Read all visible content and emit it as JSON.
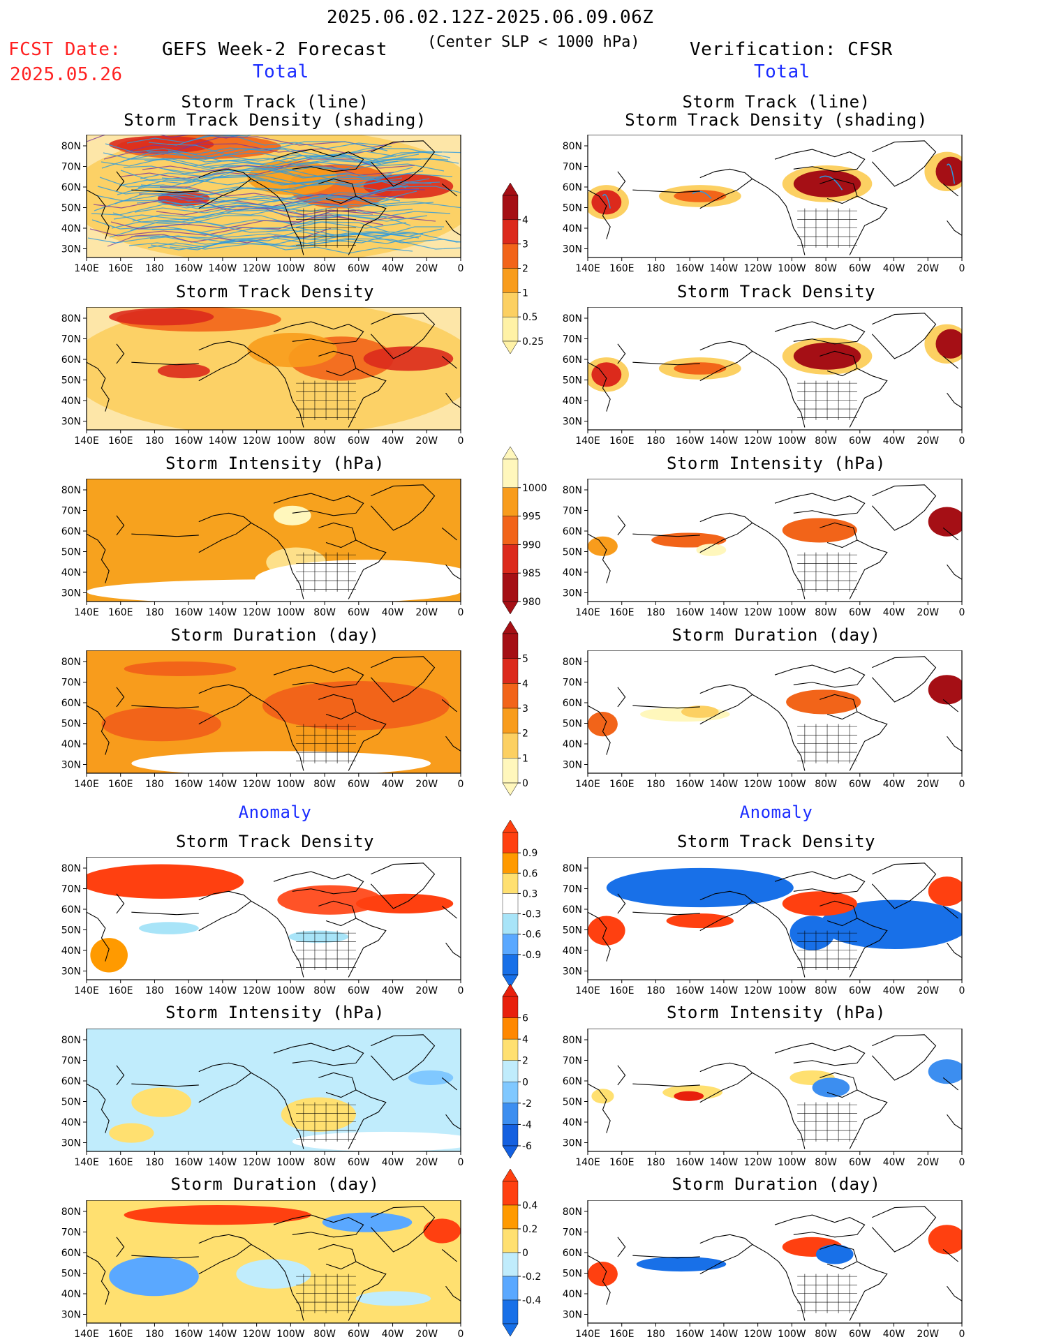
{
  "header": {
    "period": "2025.06.02.12Z-2025.06.09.06Z",
    "criteria": "(Center SLP < 1000 hPa)",
    "fcst_date_label": "FCST Date:",
    "fcst_date_value": "2025.05.26",
    "left_title": "GEFS Week-2 Forecast",
    "right_title": "Verification: CFSR",
    "left_sub": "Total",
    "right_sub": "Total"
  },
  "sections": {
    "anomaly_left": "Anomaly",
    "anomaly_right": "Anomaly"
  },
  "panel_titles": {
    "track_line": "Storm Track (line)",
    "track_shading": "Storm Track Density (shading)",
    "density": "Storm Track Density",
    "intensity": "Storm Intensity (hPa)",
    "duration": "Storm Duration (day)"
  },
  "axes": {
    "lon_labels": [
      "140E",
      "160E",
      "180",
      "160W",
      "140W",
      "120W",
      "100W",
      "80W",
      "60W",
      "40W",
      "20W",
      "0"
    ],
    "lat_labels": [
      "80N",
      "70N",
      "60N",
      "50N",
      "40N",
      "30N"
    ]
  },
  "colorbars": {
    "density_total": {
      "labels": [
        "4",
        "3",
        "2",
        "1",
        "0.5",
        "0.25"
      ],
      "colors": [
        "#a50f15",
        "#dc2a1c",
        "#f26419",
        "#f89c1c",
        "#fcd062",
        "#fff2a6"
      ]
    },
    "intensity_total": {
      "labels": [
        "1000",
        "995",
        "990",
        "985",
        "980"
      ],
      "colors": [
        "#fff7bc",
        "#f89c1c",
        "#f26419",
        "#dc2a1c",
        "#a50f15"
      ]
    },
    "duration_total": {
      "labels": [
        "5",
        "4",
        "3",
        "2",
        "1",
        "0"
      ],
      "colors": [
        "#a50f15",
        "#dc2a1c",
        "#f26419",
        "#f89c1c",
        "#fcd062",
        "#fff7bc"
      ]
    },
    "density_anom": {
      "labels": [
        "0.9",
        "0.6",
        "0.3",
        "-0.3",
        "-0.6",
        "-0.9"
      ],
      "colors": [
        "#ff4010",
        "#ff9a00",
        "#ffe070",
        "#ffffff",
        "#a8e4f8",
        "#5aa8ff",
        "#1870e8"
      ]
    },
    "intensity_anom": {
      "labels": [
        "6",
        "4",
        "2",
        "0",
        "-2",
        "-4",
        "-6"
      ],
      "colors": [
        "#e8200c",
        "#ff8800",
        "#ffe070",
        "#c0ecfc",
        "#80c8ff",
        "#3c8ef0",
        "#1460e0"
      ]
    },
    "duration_anom": {
      "labels": [
        "0.4",
        "0.2",
        "0",
        "-0.2",
        "-0.4"
      ],
      "colors": [
        "#ff4010",
        "#ff9a00",
        "#ffe070",
        "#c0ecfc",
        "#5aa8ff",
        "#1870e8"
      ]
    }
  },
  "map_panels": [
    {
      "id": "L1",
      "field": "track_density_with_tracks",
      "style": "fc_total"
    },
    {
      "id": "R1",
      "field": "track_density_with_tracks",
      "style": "vf_total"
    },
    {
      "id": "L2",
      "field": "track_density",
      "style": "fc_total"
    },
    {
      "id": "R2",
      "field": "track_density",
      "style": "vf_total"
    },
    {
      "id": "L3",
      "field": "intensity",
      "style": "fc_intensity"
    },
    {
      "id": "R3",
      "field": "intensity",
      "style": "vf_intensity"
    },
    {
      "id": "L4",
      "field": "duration",
      "style": "fc_duration"
    },
    {
      "id": "R4",
      "field": "duration",
      "style": "vf_duration"
    },
    {
      "id": "L5",
      "field": "density_anomaly",
      "style": "fc_anom_pos"
    },
    {
      "id": "R5",
      "field": "density_anomaly",
      "style": "vf_anom_mixed"
    },
    {
      "id": "L6",
      "field": "intensity_anomaly",
      "style": "fc_anom_neg"
    },
    {
      "id": "R6",
      "field": "intensity_anomaly",
      "style": "vf_anom_sparse"
    },
    {
      "id": "L7",
      "field": "duration_anomaly",
      "style": "fc_anom_mixed"
    },
    {
      "id": "R7",
      "field": "duration_anomaly",
      "style": "vf_anom_sparse2"
    }
  ]
}
